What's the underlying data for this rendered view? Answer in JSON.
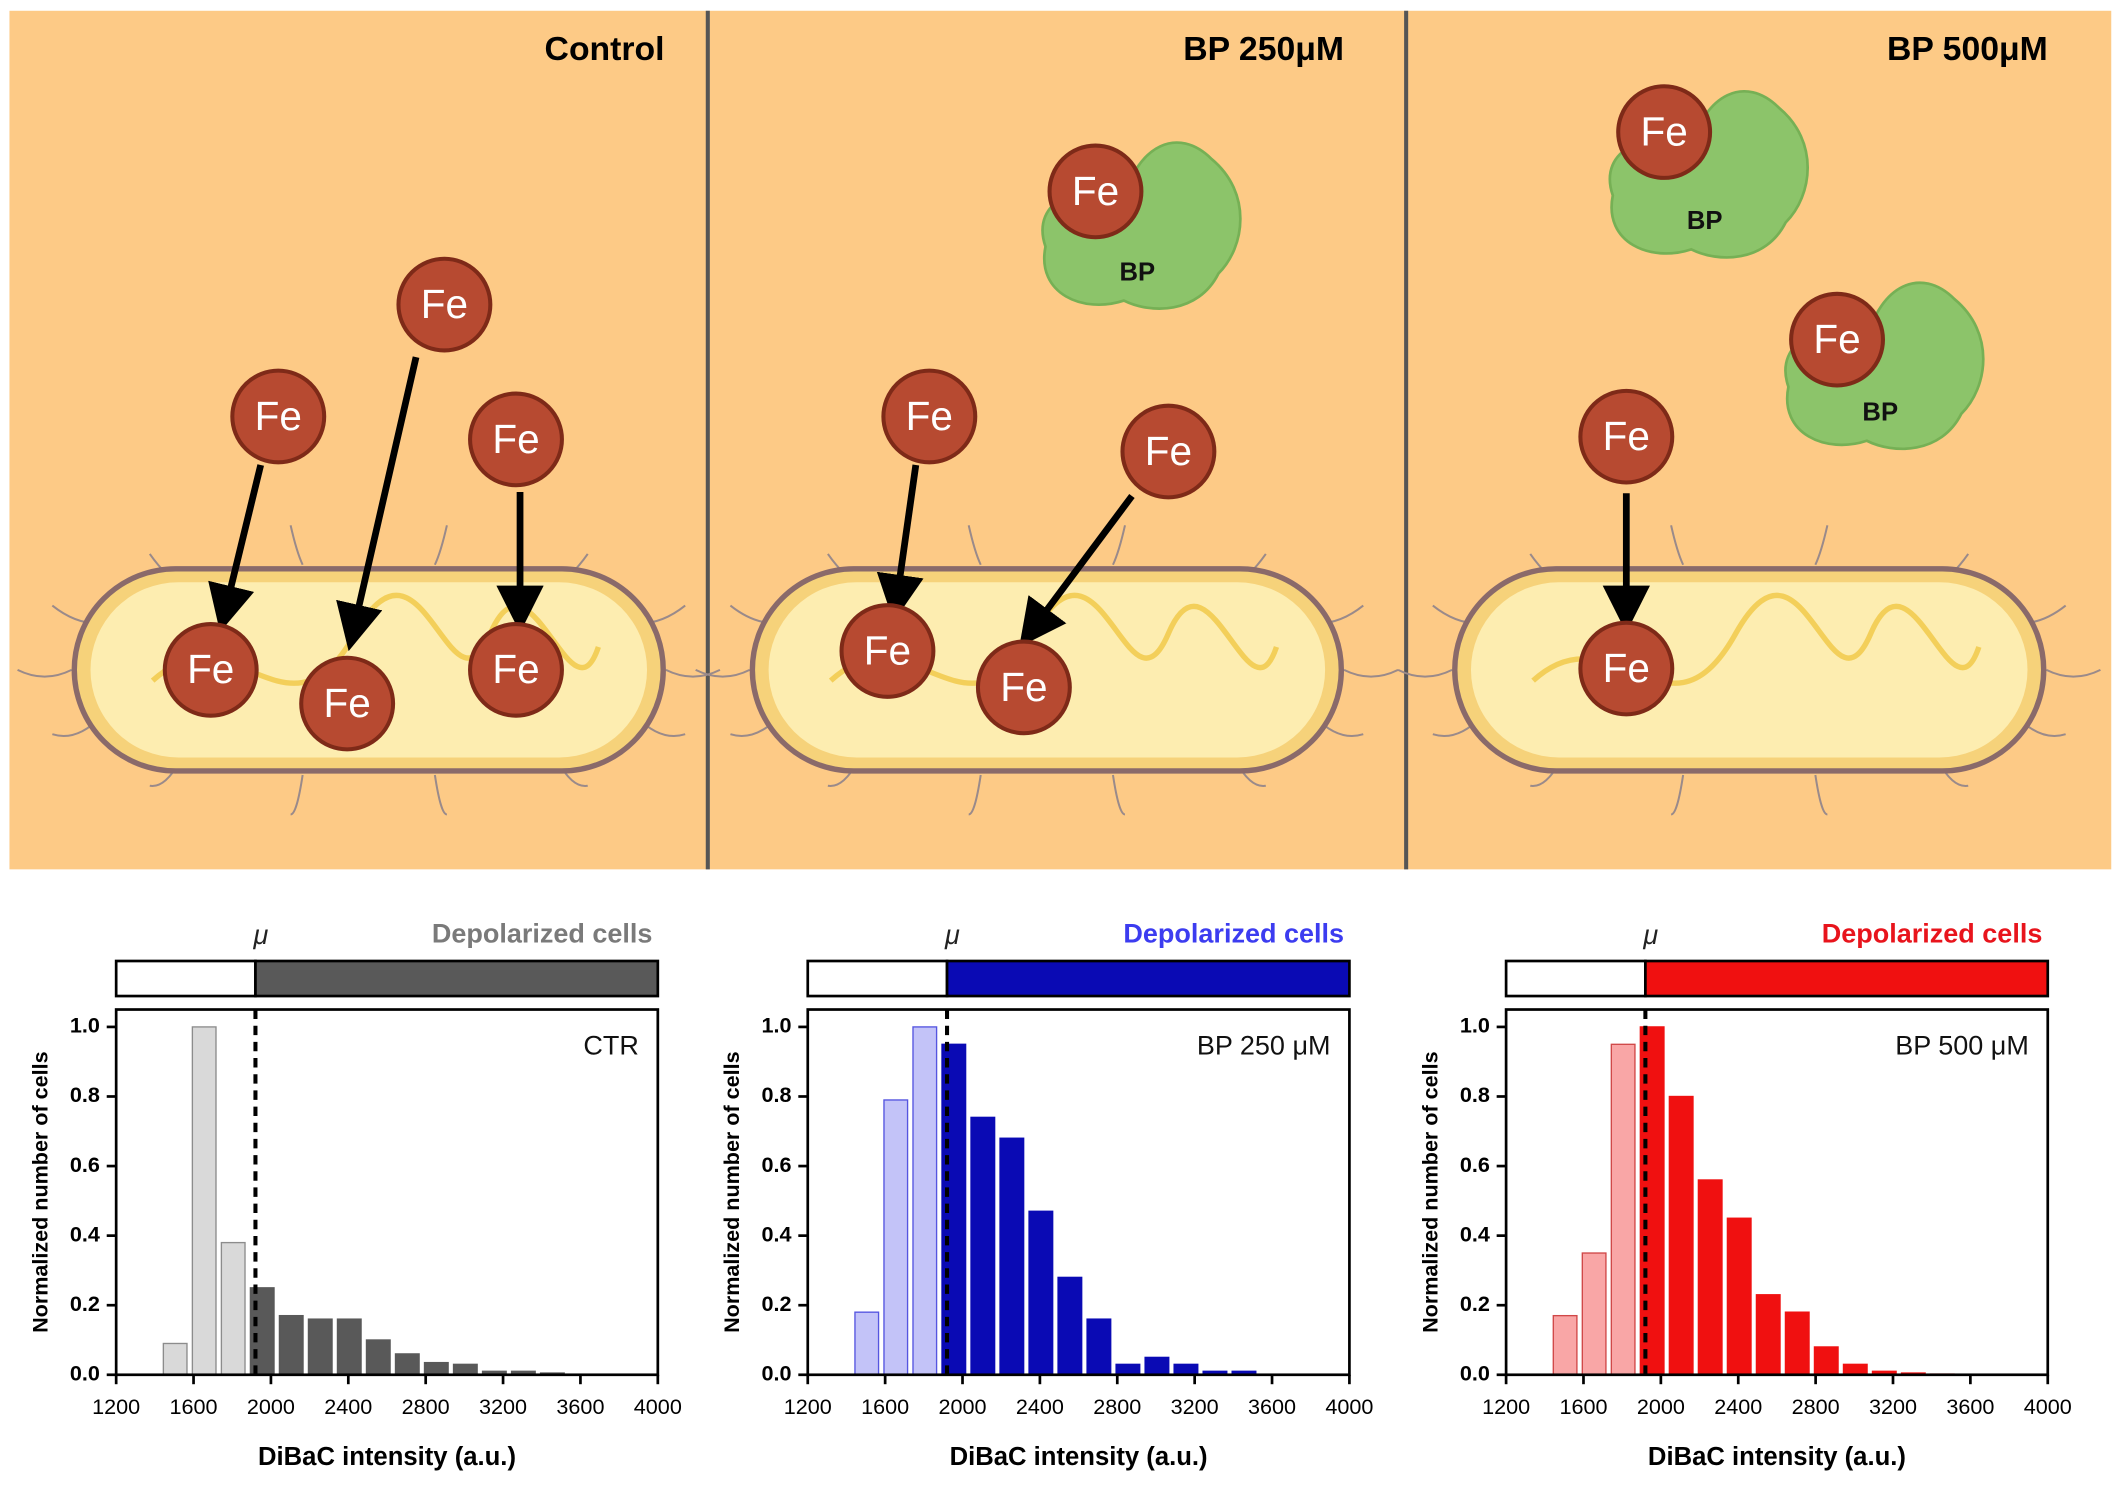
{
  "illustration": {
    "panels": [
      {
        "title": "Control"
      },
      {
        "title": "BP 250μM"
      },
      {
        "title": "BP 500μM"
      }
    ],
    "fe_label": "Fe",
    "bp_label": "BP"
  },
  "chart_data": [
    {
      "type": "histogram",
      "title": "CTR",
      "legend_label": "Depolarized cells",
      "legend_color": "#7a7a7a",
      "mu": 1920,
      "mu_label": "μ",
      "xlabel": "DiBaC intensity (a.u.)",
      "ylabel": "Normalized number of cells",
      "bins": [
        1430,
        1580,
        1730,
        1880,
        2030,
        2180,
        2330,
        2480,
        2630,
        2780,
        2930,
        3080,
        3230,
        3380,
        3530
      ],
      "values": [
        0.09,
        1.0,
        0.38,
        0.25,
        0.17,
        0.16,
        0.16,
        0.1,
        0.06,
        0.035,
        0.03,
        0.01,
        0.01,
        0.005
      ],
      "color_below": "#d9d9d9",
      "stroke_below": "#8c8c8c",
      "color_above": "#595959",
      "xlim": [
        1200,
        4000
      ],
      "xticks": [
        1200,
        1600,
        2000,
        2400,
        2800,
        3200,
        3600,
        4000
      ],
      "ylim": [
        0,
        1.05
      ],
      "yticks": [
        {
          "value": 0,
          "label": "0.0"
        },
        {
          "value": 0.2,
          "label": "0.2"
        },
        {
          "value": 0.4,
          "label": "0.4"
        },
        {
          "value": 0.6,
          "label": "0.6"
        },
        {
          "value": 0.8,
          "label": "0.8"
        },
        {
          "value": 1,
          "label": "1.0"
        }
      ]
    },
    {
      "type": "histogram",
      "title": "BP 250 μM",
      "legend_label": "Depolarized cells",
      "legend_color": "#3c3cf0",
      "mu": 1920,
      "mu_label": "μ",
      "xlabel": "DiBaC intensity (a.u.)",
      "ylabel": "Normalized number of cells",
      "bins": [
        1430,
        1580,
        1730,
        1880,
        2030,
        2180,
        2330,
        2480,
        2630,
        2780,
        2930,
        3080,
        3230,
        3380,
        3530
      ],
      "values": [
        0.18,
        0.79,
        1.0,
        0.95,
        0.74,
        0.68,
        0.47,
        0.28,
        0.16,
        0.03,
        0.05,
        0.03,
        0.01,
        0.01
      ],
      "color_below": "#c3c3f8",
      "stroke_below": "#5555e0",
      "color_above": "#0a0ab4",
      "xlim": [
        1200,
        4000
      ],
      "xticks": [
        1200,
        1600,
        2000,
        2400,
        2800,
        3200,
        3600,
        4000
      ],
      "ylim": [
        0,
        1.05
      ],
      "yticks": [
        {
          "value": 0,
          "label": "0.0"
        },
        {
          "value": 0.2,
          "label": "0.2"
        },
        {
          "value": 0.4,
          "label": "0.4"
        },
        {
          "value": 0.6,
          "label": "0.6"
        },
        {
          "value": 0.8,
          "label": "0.8"
        },
        {
          "value": 1,
          "label": "1.0"
        }
      ]
    },
    {
      "type": "histogram",
      "title": "BP 500 μM",
      "legend_label": "Depolarized cells",
      "legend_color": "#e8141c",
      "mu": 1920,
      "mu_label": "μ",
      "xlabel": "DiBaC intensity (a.u.)",
      "ylabel": "Normalized number of cells",
      "bins": [
        1430,
        1580,
        1730,
        1880,
        2030,
        2180,
        2330,
        2480,
        2630,
        2780,
        2930,
        3080,
        3230,
        3380,
        3530
      ],
      "values": [
        0.17,
        0.35,
        0.95,
        1.0,
        0.8,
        0.56,
        0.45,
        0.23,
        0.18,
        0.08,
        0.03,
        0.01,
        0.005,
        0.002
      ],
      "color_below": "#f9a6a6",
      "stroke_below": "#d04848",
      "color_above": "#f01010",
      "xlim": [
        1200,
        4000
      ],
      "xticks": [
        1200,
        1600,
        2000,
        2400,
        2800,
        3200,
        3600,
        4000
      ],
      "ylim": [
        0,
        1.05
      ],
      "yticks": [
        {
          "value": 0,
          "label": "0.0"
        },
        {
          "value": 0.2,
          "label": "0.2"
        },
        {
          "value": 0.4,
          "label": "0.4"
        },
        {
          "value": 0.6,
          "label": "0.6"
        },
        {
          "value": 0.8,
          "label": "0.8"
        },
        {
          "value": 1,
          "label": "1.0"
        }
      ]
    }
  ]
}
